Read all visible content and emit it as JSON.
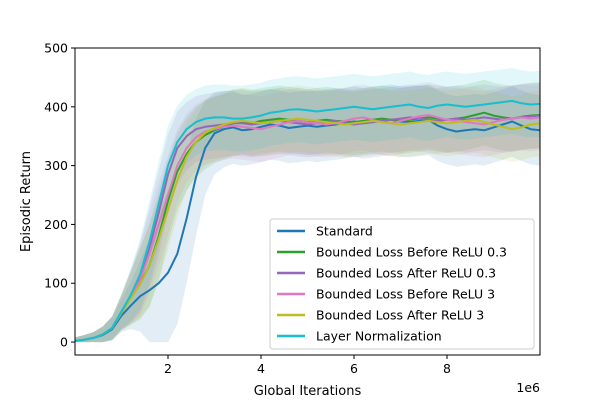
{
  "chart_data": {
    "type": "line",
    "title": "",
    "xlabel": "Global Iterations",
    "ylabel": "Episodic Return",
    "x_offset_label": "1e6",
    "xlim": [
      0,
      10
    ],
    "ylim": [
      -22,
      500
    ],
    "x_ticks": [
      2,
      4,
      6,
      8
    ],
    "y_ticks": [
      0,
      100,
      200,
      300,
      400,
      500
    ],
    "x_tick_labels": [
      "2",
      "4",
      "6",
      "8"
    ],
    "y_tick_labels": [
      "0",
      "100",
      "200",
      "300",
      "400",
      "500"
    ],
    "grid": false,
    "legend_position": "lower-right",
    "x": [
      0.0,
      0.2,
      0.4,
      0.6,
      0.8,
      1.0,
      1.2,
      1.4,
      1.6,
      1.8,
      2.0,
      2.2,
      2.4,
      2.6,
      2.8,
      3.0,
      3.2,
      3.4,
      3.6,
      3.8,
      4.0,
      4.2,
      4.4,
      4.6,
      4.8,
      5.0,
      5.2,
      5.4,
      5.6,
      5.8,
      6.0,
      6.2,
      6.4,
      6.6,
      6.8,
      7.0,
      7.2,
      7.4,
      7.6,
      7.8,
      8.0,
      8.2,
      8.4,
      8.6,
      8.8,
      9.0,
      9.2,
      9.4,
      9.6,
      9.8,
      10.0
    ],
    "series": [
      {
        "name": "Standard",
        "color": "#1f77b4",
        "values": [
          2,
          4,
          7,
          12,
          22,
          45,
          62,
          78,
          88,
          100,
          118,
          150,
          210,
          280,
          330,
          355,
          362,
          365,
          360,
          362,
          366,
          370,
          368,
          364,
          366,
          368,
          366,
          368,
          370,
          372,
          375,
          372,
          374,
          376,
          378,
          375,
          374,
          376,
          378,
          368,
          362,
          358,
          360,
          362,
          360,
          365,
          370,
          375,
          368,
          362,
          360
        ],
        "band": [
          6,
          8,
          10,
          14,
          20,
          28,
          40,
          60,
          90,
          120,
          140,
          120,
          110,
          100,
          80,
          70,
          65,
          62,
          60,
          60,
          60,
          60,
          60,
          60,
          60,
          60,
          60,
          60,
          60,
          60,
          60,
          60,
          60,
          60,
          60,
          60,
          60,
          60,
          60,
          60,
          60,
          60,
          60,
          60,
          60,
          60,
          60,
          60,
          60,
          60,
          60
        ]
      },
      {
        "name": "Bounded Loss Before ReLU 0.3",
        "color": "#2ca02c",
        "values": [
          2,
          4,
          7,
          13,
          24,
          50,
          75,
          100,
          130,
          180,
          240,
          290,
          320,
          340,
          352,
          360,
          366,
          372,
          375,
          372,
          376,
          378,
          380,
          378,
          376,
          374,
          376,
          378,
          376,
          375,
          374,
          376,
          378,
          380,
          378,
          376,
          378,
          380,
          382,
          380,
          378,
          380,
          382,
          386,
          390,
          385,
          382,
          380,
          383,
          385,
          386
        ],
        "band": [
          6,
          8,
          10,
          14,
          20,
          30,
          45,
          60,
          70,
          75,
          70,
          65,
          62,
          60,
          58,
          56,
          56,
          56,
          56,
          56,
          56,
          56,
          56,
          56,
          56,
          56,
          56,
          56,
          56,
          56,
          56,
          56,
          56,
          56,
          56,
          56,
          56,
          56,
          56,
          56,
          56,
          56,
          56,
          56,
          56,
          56,
          56,
          56,
          56,
          56,
          56
        ]
      },
      {
        "name": "Bounded Loss After ReLU 0.3",
        "color": "#9467bd",
        "values": [
          2,
          4,
          7,
          13,
          24,
          52,
          78,
          110,
          160,
          220,
          285,
          330,
          350,
          362,
          366,
          368,
          370,
          372,
          372,
          370,
          372,
          374,
          376,
          374,
          372,
          370,
          372,
          374,
          376,
          372,
          370,
          372,
          374,
          376,
          378,
          380,
          382,
          380,
          378,
          376,
          378,
          380,
          378,
          380,
          382,
          380,
          378,
          380,
          382,
          384,
          385
        ],
        "band": [
          6,
          8,
          10,
          14,
          20,
          30,
          45,
          60,
          70,
          72,
          68,
          62,
          58,
          56,
          56,
          56,
          56,
          56,
          56,
          56,
          56,
          56,
          56,
          56,
          56,
          56,
          56,
          56,
          56,
          56,
          56,
          56,
          56,
          56,
          56,
          56,
          56,
          56,
          56,
          56,
          56,
          56,
          56,
          56,
          56,
          56,
          56,
          56,
          56,
          56,
          56
        ]
      },
      {
        "name": "Bounded Loss Before ReLU 3",
        "color": "#e377c2",
        "values": [
          2,
          4,
          7,
          13,
          24,
          50,
          76,
          105,
          150,
          200,
          250,
          300,
          330,
          348,
          358,
          362,
          366,
          368,
          366,
          364,
          362,
          366,
          370,
          374,
          376,
          374,
          372,
          370,
          372,
          376,
          380,
          382,
          378,
          374,
          372,
          376,
          380,
          384,
          386,
          382,
          378,
          376,
          374,
          372,
          370,
          374,
          378,
          380,
          382,
          380,
          382
        ],
        "band": [
          6,
          8,
          10,
          14,
          20,
          30,
          45,
          60,
          70,
          72,
          68,
          62,
          58,
          56,
          56,
          56,
          56,
          56,
          56,
          56,
          56,
          56,
          56,
          56,
          56,
          56,
          56,
          56,
          56,
          56,
          56,
          56,
          56,
          56,
          56,
          56,
          56,
          56,
          56,
          56,
          56,
          56,
          56,
          56,
          56,
          56,
          56,
          56,
          56,
          56,
          56
        ]
      },
      {
        "name": "Bounded Loss After ReLU 3",
        "color": "#bcbd22",
        "values": [
          2,
          4,
          7,
          13,
          24,
          50,
          74,
          98,
          130,
          175,
          225,
          275,
          315,
          340,
          356,
          364,
          370,
          374,
          376,
          374,
          372,
          374,
          376,
          378,
          380,
          378,
          376,
          374,
          372,
          370,
          372,
          374,
          376,
          374,
          372,
          370,
          372,
          374,
          376,
          374,
          372,
          374,
          376,
          378,
          374,
          370,
          366,
          362,
          365,
          370,
          372
        ],
        "band": [
          6,
          8,
          10,
          14,
          20,
          30,
          45,
          60,
          70,
          72,
          68,
          62,
          58,
          56,
          56,
          56,
          56,
          56,
          56,
          56,
          56,
          56,
          56,
          56,
          56,
          56,
          56,
          56,
          56,
          56,
          56,
          56,
          56,
          56,
          56,
          56,
          56,
          56,
          56,
          56,
          56,
          56,
          56,
          56,
          56,
          56,
          56,
          56,
          56,
          56,
          56
        ]
      },
      {
        "name": "Layer Normalization",
        "color": "#17becf",
        "values": [
          2,
          4,
          7,
          13,
          24,
          52,
          80,
          115,
          170,
          235,
          300,
          340,
          362,
          374,
          380,
          382,
          382,
          380,
          380,
          382,
          385,
          390,
          392,
          395,
          396,
          394,
          392,
          394,
          396,
          398,
          400,
          398,
          396,
          398,
          400,
          402,
          404,
          400,
          398,
          402,
          404,
          402,
          400,
          402,
          404,
          406,
          408,
          410,
          406,
          404,
          405
        ],
        "band": [
          6,
          8,
          10,
          14,
          20,
          30,
          45,
          60,
          70,
          72,
          68,
          62,
          58,
          56,
          56,
          56,
          56,
          56,
          56,
          56,
          56,
          56,
          56,
          56,
          56,
          56,
          56,
          56,
          56,
          56,
          56,
          56,
          56,
          56,
          56,
          56,
          56,
          56,
          56,
          56,
          56,
          56,
          56,
          56,
          56,
          56,
          56,
          56,
          56,
          56,
          56
        ]
      }
    ]
  }
}
